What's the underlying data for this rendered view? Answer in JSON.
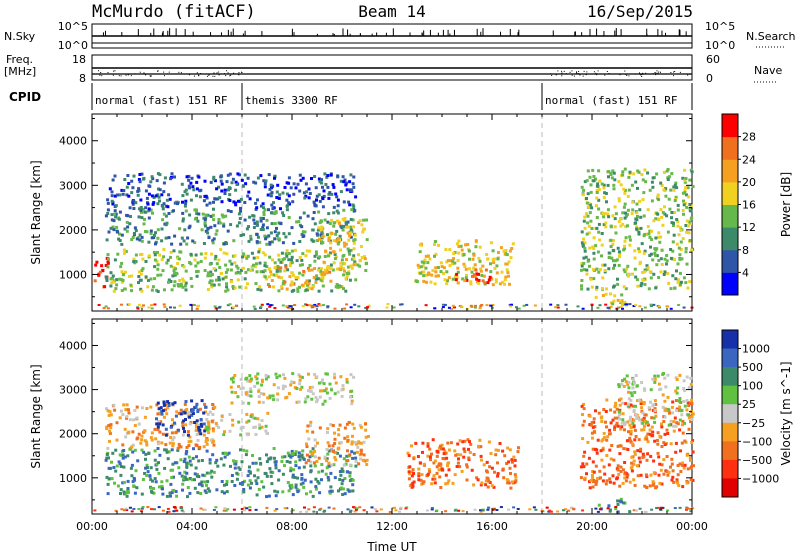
{
  "header": {
    "station": "McMurdo (fitACF)",
    "beam": "Beam 14",
    "date": "16/Sep/2015"
  },
  "top_panels": {
    "nsky_label": "N.Sky",
    "nsky_ticks": [
      "10^5",
      "10^0"
    ],
    "nsearch_label": "N.Search",
    "nsearch_ticks": [
      "10^5",
      "10^0"
    ],
    "freq_label": "Freq.",
    "freq_unit": "[MHz]",
    "freq_ticks": [
      "18",
      "8"
    ],
    "nave_label": "Nave",
    "nave_ticks": [
      "60",
      "0"
    ],
    "cpid_label": "CPID",
    "cpid_segments": [
      {
        "label": "normal (fast) 151 RF",
        "start_hour": 0,
        "end_hour": 6
      },
      {
        "label": "themis 3300 RF",
        "start_hour": 6,
        "end_hour": 18
      },
      {
        "label": "normal (fast) 151 RF",
        "start_hour": 18,
        "end_hour": 24
      }
    ]
  },
  "chart_data": [
    {
      "type": "heatmap",
      "title": "",
      "xlabel": "",
      "ylabel": "Slant Range [km]",
      "xlim": [
        0,
        24
      ],
      "ylim": [
        180,
        4600
      ],
      "yticks": [
        1000,
        2000,
        3000,
        4000
      ],
      "colorbar_label": "Power [dB]",
      "colorbar_ticks": [
        "4",
        "8",
        "12",
        "16",
        "20",
        "24",
        "28"
      ],
      "colorbar_colors": [
        "#0000ff",
        "#2f55a8",
        "#3d8a6a",
        "#66b84a",
        "#f0d020",
        "#f5a020",
        "#f07020",
        "#ff0000"
      ],
      "echo_regions": [
        {
          "x": [
            0,
            0.6
          ],
          "y": [
            700,
            1400
          ],
          "level": 7
        },
        {
          "x": [
            0.5,
            10.5
          ],
          "y": [
            650,
            1600
          ],
          "level": 3
        },
        {
          "x": [
            0.5,
            10.5
          ],
          "y": [
            1700,
            2500
          ],
          "level": 2
        },
        {
          "x": [
            0.5,
            10.5
          ],
          "y": [
            2500,
            3300
          ],
          "level": 1
        },
        {
          "x": [
            7,
            9.5
          ],
          "y": [
            700,
            1200
          ],
          "level": 5
        },
        {
          "x": [
            9,
            11
          ],
          "y": [
            1100,
            2300
          ],
          "level": 4
        },
        {
          "x": [
            12.8,
            16.8
          ],
          "y": [
            800,
            1800
          ],
          "level": 4
        },
        {
          "x": [
            14.5,
            16
          ],
          "y": [
            800,
            1200
          ],
          "level": 6
        },
        {
          "x": [
            19.5,
            24
          ],
          "y": [
            700,
            3400
          ],
          "level": 3
        },
        {
          "x": [
            20,
            21.5
          ],
          "y": [
            300,
            600
          ],
          "level": 4
        }
      ]
    },
    {
      "type": "heatmap",
      "title": "",
      "xlabel": "Time UT",
      "ylabel": "Slant Range [km]",
      "xlim": [
        0,
        24
      ],
      "ylim": [
        180,
        4600
      ],
      "xticks": [
        "00:00",
        "04:00",
        "08:00",
        "12:00",
        "16:00",
        "20:00",
        "00:00"
      ],
      "yticks": [
        1000,
        2000,
        3000,
        4000
      ],
      "colorbar_label": "Velocity [m s^-1]",
      "colorbar_ticks": [
        "1000",
        "500",
        "100",
        "25",
        "−25",
        "−100",
        "−500",
        "−1000"
      ],
      "colorbar_colors": [
        "#1530a8",
        "#3a66c0",
        "#3d8a6a",
        "#60c040",
        "#c8c8c8",
        "#f5a020",
        "#f07020",
        "#ff3010",
        "#e00000"
      ],
      "echo_regions": [
        {
          "x": [
            0.5,
            10.5
          ],
          "y": [
            600,
            1700
          ],
          "level": 2
        },
        {
          "x": [
            0.5,
            5
          ],
          "y": [
            1700,
            2700
          ],
          "level": 5
        },
        {
          "x": [
            2.5,
            4.5
          ],
          "y": [
            2000,
            2800
          ],
          "level": 0
        },
        {
          "x": [
            4.5,
            7
          ],
          "y": [
            2000,
            2500
          ],
          "level": 4
        },
        {
          "x": [
            5.5,
            10.5
          ],
          "y": [
            2700,
            3400
          ],
          "level": 4
        },
        {
          "x": [
            8.5,
            11
          ],
          "y": [
            1300,
            2300
          ],
          "level": 5
        },
        {
          "x": [
            12.5,
            17
          ],
          "y": [
            800,
            1900
          ],
          "level": 6
        },
        {
          "x": [
            19.5,
            24
          ],
          "y": [
            800,
            2800
          ],
          "level": 6
        },
        {
          "x": [
            21,
            24
          ],
          "y": [
            2200,
            3400
          ],
          "level": 4
        },
        {
          "x": [
            20.2,
            21.5
          ],
          "y": [
            250,
            550
          ],
          "level": 2
        }
      ]
    }
  ]
}
